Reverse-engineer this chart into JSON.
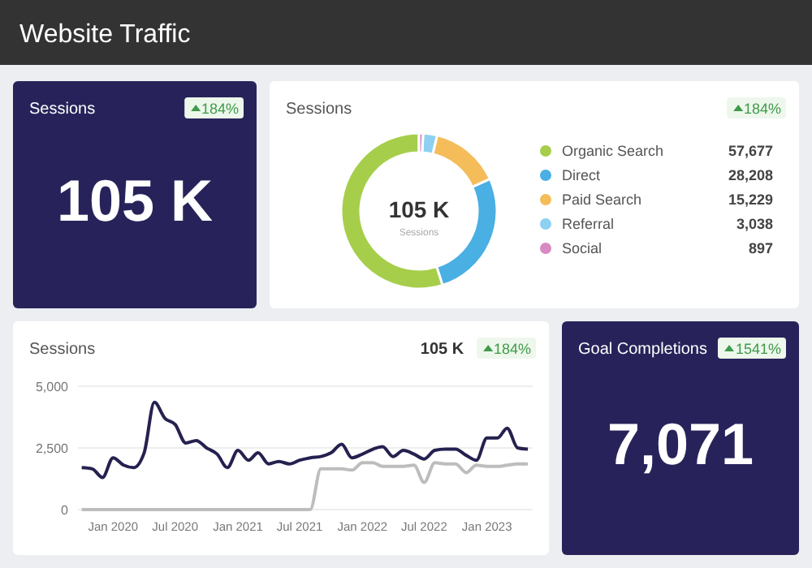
{
  "chart_data": [
    {
      "type": "other",
      "title": "Website Traffic"
    },
    {
      "type": "other",
      "title": "Sessions",
      "annotations": [
        "184%",
        "105 K"
      ]
    },
    {
      "type": "donut",
      "title": "Sessions",
      "categories": [
        "Organic Search",
        "Direct",
        "Paid Search",
        "Referral",
        "Social"
      ],
      "values": [
        57677,
        28208,
        15229,
        3038,
        897
      ],
      "colors": [
        "#a6ce4a",
        "#4aafe3",
        "#f4bd5a",
        "#8dd0f2",
        "#d78ac4"
      ],
      "value_labels": [
        "57,677",
        "28,208",
        "15,229",
        "3,038",
        "897"
      ],
      "legend": "right",
      "annotations": [
        "184%",
        "105 K",
        "Sessions"
      ]
    },
    {
      "type": "line",
      "title": "Sessions",
      "annotations": [
        "105 K",
        "184%"
      ],
      "grid": "y",
      "legend": false,
      "x": [
        "2019-10",
        "2019-11",
        "2019-12",
        "2020-01",
        "2020-02",
        "2020-03",
        "2020-04",
        "2020-05",
        "2020-06",
        "2020-07",
        "2020-08",
        "2020-09",
        "2020-10",
        "2020-11",
        "2020-12",
        "2021-01",
        "2021-02",
        "2021-03",
        "2021-04",
        "2021-05",
        "2021-06",
        "2021-07",
        "2021-08",
        "2021-09",
        "2021-10",
        "2021-11",
        "2021-12",
        "2022-01",
        "2022-02",
        "2022-03",
        "2022-04",
        "2022-05",
        "2022-06",
        "2022-07",
        "2022-08",
        "2022-09",
        "2022-10",
        "2022-11",
        "2022-12",
        "2023-01",
        "2023-02",
        "2023-03",
        "2023-04",
        "2023-05"
      ],
      "xlim": [
        "2019-09-20",
        "2023-05-15"
      ],
      "xticks": [
        {
          "value": "2020-01",
          "label": "Jan 2020"
        },
        {
          "value": "2020-07",
          "label": "Jul 2020"
        },
        {
          "value": "2021-01",
          "label": "Jan 2021"
        },
        {
          "value": "2021-07",
          "label": "Jul 2021"
        },
        {
          "value": "2022-01",
          "label": "Jan 2022"
        },
        {
          "value": "2022-07",
          "label": "Jul 2022"
        },
        {
          "value": "2023-01",
          "label": "Jan 2023"
        }
      ],
      "ylim": [
        0,
        5000
      ],
      "yticks": [
        0,
        {
          "value": 2500,
          "label": "2,500"
        },
        {
          "value": 5000,
          "label": "5,000"
        }
      ],
      "series": [
        {
          "color": "#25214f",
          "values": [
            1700,
            1650,
            1300,
            2100,
            1800,
            1700,
            2300,
            4350,
            3700,
            3450,
            2700,
            2800,
            2500,
            2250,
            1700,
            2400,
            2000,
            2300,
            1850,
            1950,
            1850,
            2000,
            2100,
            2150,
            2300,
            2650,
            2100,
            2250,
            2450,
            2550,
            2150,
            2400,
            2250,
            2050,
            2400,
            2450,
            2450,
            2200,
            2000,
            2900,
            2900,
            3300,
            2500,
            2450
          ]
        },
        {
          "color": "#bdbdbd",
          "values": [
            0,
            0,
            0,
            0,
            0,
            0,
            0,
            0,
            0,
            0,
            0,
            0,
            0,
            0,
            0,
            0,
            0,
            0,
            0,
            0,
            0,
            0,
            0,
            1650,
            1650,
            1650,
            1600,
            1900,
            1900,
            1750,
            1750,
            1750,
            1800,
            1100,
            1900,
            1850,
            1850,
            1500,
            1800,
            1750,
            1750,
            1800,
            1850,
            1850
          ]
        }
      ]
    },
    {
      "type": "other",
      "title": "Goal Completions",
      "annotations": [
        "1541%",
        "7,071"
      ]
    }
  ]
}
